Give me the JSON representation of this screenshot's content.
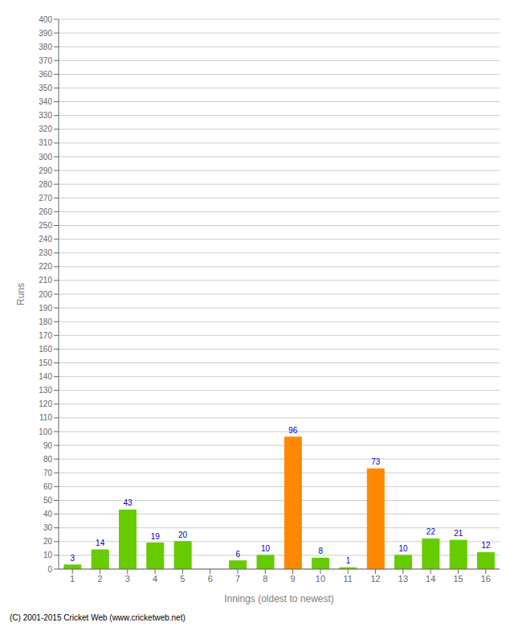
{
  "chart_data": {
    "type": "bar",
    "xlabel": "Innings (oldest to newest)",
    "ylabel": "Runs",
    "categories": [
      "1",
      "2",
      "3",
      "4",
      "5",
      "6",
      "7",
      "8",
      "9",
      "10",
      "11",
      "12",
      "13",
      "14",
      "15",
      "16"
    ],
    "values": [
      3,
      14,
      43,
      19,
      20,
      0,
      6,
      10,
      96,
      8,
      1,
      73,
      10,
      22,
      21,
      12
    ],
    "colors": [
      "#66cc00",
      "#66cc00",
      "#66cc00",
      "#66cc00",
      "#66cc00",
      "#66cc00",
      "#66cc00",
      "#66cc00",
      "#ff8800",
      "#66cc00",
      "#66cc00",
      "#ff8800",
      "#66cc00",
      "#66cc00",
      "#66cc00",
      "#66cc00"
    ],
    "ylim": [
      0,
      400
    ],
    "yticks": [
      0,
      10,
      20,
      30,
      40,
      50,
      60,
      70,
      80,
      90,
      100,
      110,
      120,
      130,
      140,
      150,
      160,
      170,
      180,
      190,
      200,
      210,
      220,
      230,
      240,
      250,
      260,
      270,
      280,
      290,
      300,
      310,
      320,
      330,
      340,
      350,
      360,
      370,
      380,
      390,
      400
    ],
    "grid": true,
    "data_labels": true,
    "annotations": [
      "(C) 2001-2015 Cricket Web (www.cricketweb.net)"
    ]
  }
}
